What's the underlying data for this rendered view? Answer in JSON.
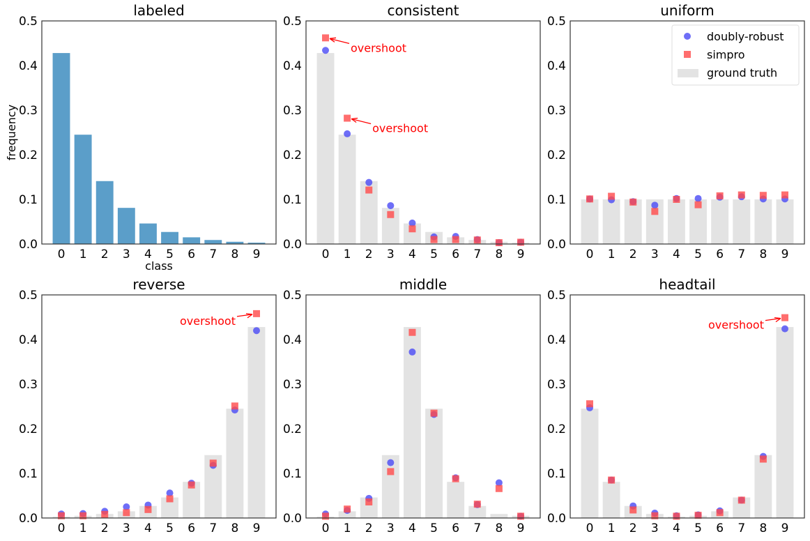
{
  "colors": {
    "bar": "#5b9ec9",
    "ground_truth": "#e3e3e3",
    "doubly_robust": "#4a4af5",
    "simpro": "#ff4a4a",
    "annotation": "#ff0000"
  },
  "chart_data": [
    {
      "type": "bar",
      "title": "labeled",
      "xlabel": "class",
      "ylabel": "frequency",
      "categories": [
        "0",
        "1",
        "2",
        "3",
        "4",
        "5",
        "6",
        "7",
        "8",
        "9"
      ],
      "ylim": [
        0,
        0.5
      ],
      "yticks": [
        "0.0",
        "0.1",
        "0.2",
        "0.3",
        "0.4",
        "0.5"
      ],
      "values": [
        0.428,
        0.245,
        0.141,
        0.081,
        0.046,
        0.027,
        0.015,
        0.009,
        0.005,
        0.003
      ]
    },
    {
      "type": "bar+scatter",
      "title": "consistent",
      "categories": [
        "0",
        "1",
        "2",
        "3",
        "4",
        "5",
        "6",
        "7",
        "8",
        "9"
      ],
      "ylim": [
        0,
        0.5
      ],
      "yticks": [
        "0.0",
        "0.1",
        "0.2",
        "0.3",
        "0.4",
        "0.5"
      ],
      "ground_truth": [
        0.428,
        0.245,
        0.141,
        0.081,
        0.046,
        0.027,
        0.015,
        0.009,
        0.005,
        0.003
      ],
      "doubly_robust": [
        0.434,
        0.247,
        0.138,
        0.086,
        0.047,
        0.016,
        0.017,
        0.01,
        0.003,
        0.004
      ],
      "simpro": [
        0.462,
        0.282,
        0.121,
        0.066,
        0.034,
        0.01,
        0.01,
        0.009,
        0.003,
        0.004
      ],
      "annotations": [
        {
          "text": "overshoot",
          "class": 0
        },
        {
          "text": "overshoot",
          "class": 1
        }
      ]
    },
    {
      "type": "bar+scatter",
      "title": "uniform",
      "categories": [
        "0",
        "1",
        "2",
        "3",
        "4",
        "5",
        "6",
        "7",
        "8",
        "9"
      ],
      "ylim": [
        0,
        0.5
      ],
      "yticks": [
        "0.0",
        "0.1",
        "0.2",
        "0.3",
        "0.4",
        "0.5"
      ],
      "ground_truth": [
        0.1,
        0.1,
        0.1,
        0.1,
        0.1,
        0.1,
        0.1,
        0.1,
        0.1,
        0.1
      ],
      "doubly_robust": [
        0.101,
        0.099,
        0.095,
        0.087,
        0.102,
        0.102,
        0.105,
        0.106,
        0.101,
        0.101
      ],
      "simpro": [
        0.101,
        0.107,
        0.094,
        0.073,
        0.1,
        0.088,
        0.108,
        0.11,
        0.109,
        0.11
      ],
      "legend": {
        "position": "top-right",
        "entries": [
          "doubly-robust",
          "simpro",
          "ground truth"
        ]
      }
    },
    {
      "type": "bar+scatter",
      "title": "reverse",
      "categories": [
        "0",
        "1",
        "2",
        "3",
        "4",
        "5",
        "6",
        "7",
        "8",
        "9"
      ],
      "ylim": [
        0,
        0.5
      ],
      "yticks": [
        "0.0",
        "0.1",
        "0.2",
        "0.3",
        "0.4",
        "0.5"
      ],
      "ground_truth": [
        0.003,
        0.005,
        0.009,
        0.015,
        0.027,
        0.046,
        0.081,
        0.141,
        0.245,
        0.428
      ],
      "doubly_robust": [
        0.009,
        0.01,
        0.015,
        0.025,
        0.029,
        0.056,
        0.078,
        0.118,
        0.242,
        0.42
      ],
      "simpro": [
        0.005,
        0.005,
        0.008,
        0.012,
        0.019,
        0.043,
        0.074,
        0.123,
        0.251,
        0.458
      ],
      "annotations": [
        {
          "text": "overshoot",
          "class": 9
        }
      ]
    },
    {
      "type": "bar+scatter",
      "title": "middle",
      "categories": [
        "0",
        "1",
        "2",
        "3",
        "4",
        "5",
        "6",
        "7",
        "8",
        "9"
      ],
      "ylim": [
        0,
        0.5
      ],
      "yticks": [
        "0.0",
        "0.1",
        "0.2",
        "0.3",
        "0.4",
        "0.5"
      ],
      "ground_truth": [
        0.003,
        0.015,
        0.046,
        0.141,
        0.428,
        0.245,
        0.081,
        0.027,
        0.009,
        0.005
      ],
      "doubly_robust": [
        0.009,
        0.017,
        0.044,
        0.124,
        0.372,
        0.232,
        0.09,
        0.03,
        0.079,
        0.004
      ],
      "simpro": [
        0.004,
        0.02,
        0.036,
        0.104,
        0.416,
        0.235,
        0.088,
        0.031,
        0.066,
        0.004
      ]
    },
    {
      "type": "bar+scatter",
      "title": "headtail",
      "categories": [
        "0",
        "1",
        "2",
        "3",
        "4",
        "5",
        "6",
        "7",
        "8",
        "9"
      ],
      "ylim": [
        0,
        0.5
      ],
      "yticks": [
        "0.0",
        "0.1",
        "0.2",
        "0.3",
        "0.4",
        "0.5"
      ],
      "ground_truth": [
        0.245,
        0.081,
        0.027,
        0.009,
        0.003,
        0.005,
        0.015,
        0.046,
        0.141,
        0.428
      ],
      "doubly_robust": [
        0.247,
        0.085,
        0.027,
        0.011,
        0.005,
        0.007,
        0.016,
        0.04,
        0.138,
        0.424
      ],
      "simpro": [
        0.256,
        0.085,
        0.018,
        0.005,
        0.004,
        0.006,
        0.012,
        0.04,
        0.132,
        0.449
      ],
      "annotations": [
        {
          "text": "overshoot",
          "class": 9
        }
      ]
    }
  ]
}
